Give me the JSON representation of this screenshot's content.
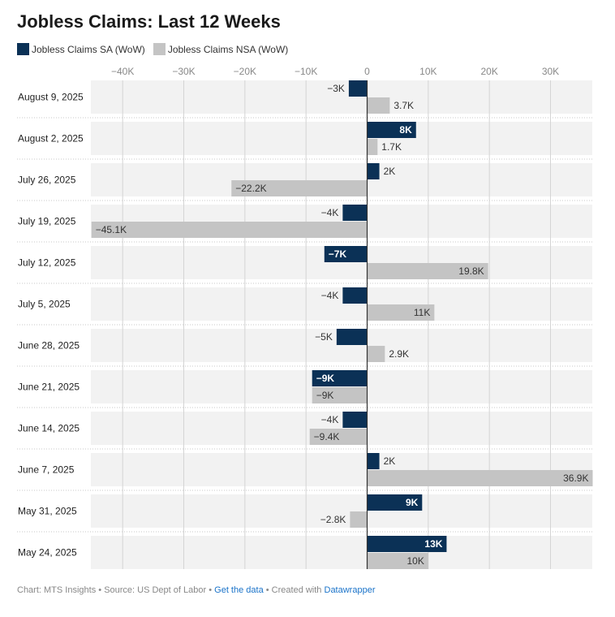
{
  "header": {
    "title": "Jobless Claims: Last 12 Weeks"
  },
  "legend": {
    "sa_label": "Jobless Claims SA (WoW)",
    "nsa_label": "Jobless Claims NSA (WoW)"
  },
  "colors": {
    "sa": "#0b3156",
    "nsa": "#c4c4c4",
    "row_bg": "#f2f2f2",
    "grid": "#d4d4d4",
    "zero_line": "#333333"
  },
  "chart_data": {
    "type": "bar",
    "orientation": "horizontal",
    "title": "Jobless Claims: Last 12 Weeks",
    "categories": [
      "August 9, 2025",
      "August 2, 2025",
      "July 26, 2025",
      "July 19, 2025",
      "July 12, 2025",
      "July 5, 2025",
      "June 28, 2025",
      "June 21, 2025",
      "June 14, 2025",
      "June 7, 2025",
      "May 31, 2025",
      "May 24, 2025"
    ],
    "series": [
      {
        "name": "Jobless Claims SA (WoW)",
        "values": [
          -3000,
          8000,
          2000,
          -4000,
          -7000,
          -4000,
          -5000,
          -9000,
          -4000,
          2000,
          9000,
          13000
        ],
        "labels": [
          "−3K",
          "8K",
          "2K",
          "−4K",
          "−7K",
          "−4K",
          "−5K",
          "−9K",
          "−4K",
          "2K",
          "9K",
          "13K"
        ]
      },
      {
        "name": "Jobless Claims NSA (WoW)",
        "values": [
          3700,
          1700,
          -22200,
          -45100,
          19800,
          11000,
          2900,
          -9000,
          -9400,
          36900,
          -2800,
          10000
        ],
        "labels": [
          "3.7K",
          "1.7K",
          "−22.2K",
          "−45.1K",
          "19.8K",
          "11K",
          "2.9K",
          "−9K",
          "−9.4K",
          "36.9K",
          "−2.8K",
          "10K"
        ]
      }
    ],
    "x_ticks": [
      -40000,
      -30000,
      -20000,
      -10000,
      0,
      10000,
      20000,
      30000
    ],
    "x_tick_labels": [
      "−40K",
      "−30K",
      "−20K",
      "−10K",
      "0",
      "10K",
      "20K",
      "30K"
    ],
    "xlim": [
      -45100,
      36900
    ],
    "grid": true,
    "legend_position": "top-left"
  },
  "footer": {
    "chart_by": "Chart: MTS Insights",
    "source": "Source: US Dept of Labor",
    "get_data": "Get the data",
    "created_with_prefix": "Created with",
    "created_with": "Datawrapper",
    "separator": "•"
  }
}
